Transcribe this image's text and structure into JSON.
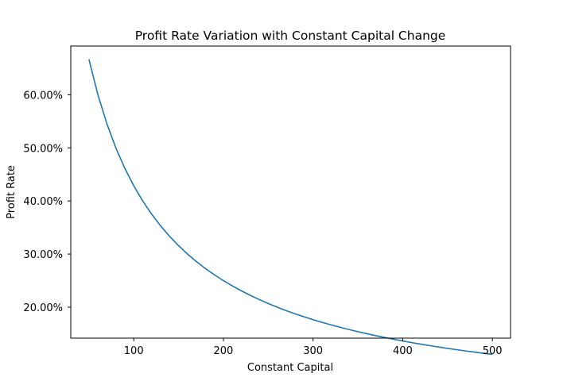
{
  "chart_data": {
    "type": "line",
    "title": "Profit Rate Variation with Constant Capital Change",
    "xlabel": "Constant Capital",
    "ylabel": "Profit Rate",
    "xlim": [
      29.75,
      520.25
    ],
    "ylim": [
      0.1417,
      0.6917
    ],
    "x_ticks": [
      100,
      200,
      300,
      400,
      500
    ],
    "x_tick_labels": [
      "100",
      "200",
      "300",
      "400",
      "500"
    ],
    "y_ticks": [
      0.2,
      0.3,
      0.4,
      0.5,
      0.6
    ],
    "y_tick_labels": [
      "20.00%",
      "30.00%",
      "40.00%",
      "50.00%",
      "60.00%"
    ],
    "grid": false,
    "line_color": "#1f77b4",
    "series": [
      {
        "x": [
          50,
          60,
          70,
          80,
          90,
          100,
          110,
          120,
          130,
          140,
          150,
          160,
          170,
          180,
          190,
          200,
          210,
          220,
          230,
          240,
          250,
          260,
          270,
          280,
          290,
          300,
          310,
          320,
          330,
          340,
          350,
          360,
          370,
          380,
          390,
          400,
          410,
          420,
          430,
          440,
          450,
          460,
          470,
          480,
          490,
          500
        ],
        "y": [
          0.6667,
          0.6,
          0.5455,
          0.5,
          0.4615,
          0.4286,
          0.4,
          0.375,
          0.3529,
          0.3333,
          0.3158,
          0.3,
          0.2857,
          0.2727,
          0.2609,
          0.25,
          0.24,
          0.2308,
          0.2222,
          0.2143,
          0.2069,
          0.2,
          0.1935,
          0.1875,
          0.1818,
          0.1765,
          0.1714,
          0.1667,
          0.1622,
          0.1579,
          0.1538,
          0.15,
          0.1463,
          0.1429,
          0.1395,
          0.1364,
          0.1333,
          0.1304,
          0.1277,
          0.125,
          0.1224,
          0.12,
          0.1176,
          0.1154,
          0.1132,
          0.1111
        ]
      }
    ]
  }
}
